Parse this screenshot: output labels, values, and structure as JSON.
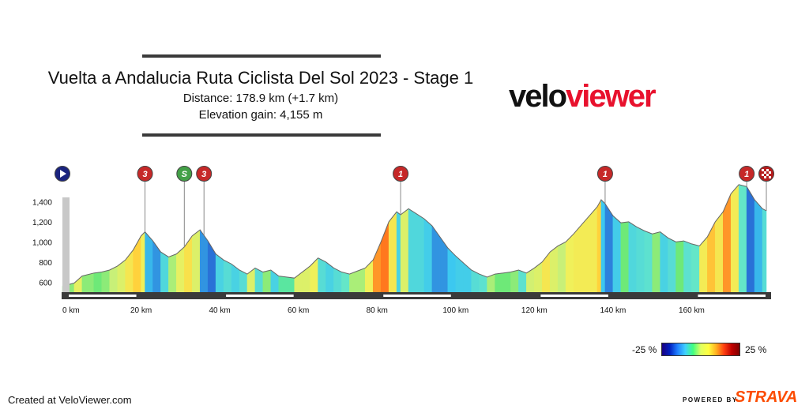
{
  "header": {
    "title": "Vuelta a Andalucia Ruta Ciclista Del Sol 2023 - Stage 1",
    "distance": "Distance: 178.9 km (+1.7 km)",
    "elevation": "Elevation gain: 4,155 m"
  },
  "logo": {
    "part1": "velo",
    "part2": "viewer"
  },
  "legend": {
    "min": "-25 %",
    "max": "25 %"
  },
  "footer": {
    "created": "Created at VeloViewer.com",
    "powered": "POWERED BY",
    "strava": "STRAVA"
  },
  "colors": {
    "brand": "#e8112d",
    "strava": "#fc4c02",
    "marker_red": "#c62828",
    "marker_green": "#43a047",
    "marker_blue": "#1a237e"
  },
  "chart_data": {
    "type": "area",
    "xlabel": "",
    "ylabel": "",
    "xlim": [
      0,
      180
    ],
    "ylim": [
      500,
      1600
    ],
    "x_ticks": [
      0,
      20,
      40,
      60,
      80,
      100,
      120,
      140,
      160
    ],
    "x_tick_labels": [
      "0 km",
      "20 km",
      "40 km",
      "60 km",
      "80 km",
      "100 km",
      "120 km",
      "140 km",
      "160 km"
    ],
    "y_ticks": [
      600,
      800,
      1000,
      1200,
      1400
    ],
    "y_tick_labels": [
      "600",
      "800",
      "1,000",
      "1,200",
      "1,400"
    ],
    "elevation_profile": [
      [
        0,
        560
      ],
      [
        3,
        590
      ],
      [
        5,
        660
      ],
      [
        8,
        690
      ],
      [
        10,
        700
      ],
      [
        12,
        720
      ],
      [
        14,
        760
      ],
      [
        16,
        820
      ],
      [
        18,
        920
      ],
      [
        20,
        1060
      ],
      [
        21,
        1100
      ],
      [
        23,
        1010
      ],
      [
        25,
        900
      ],
      [
        27,
        850
      ],
      [
        29,
        880
      ],
      [
        31,
        950
      ],
      [
        33,
        1060
      ],
      [
        35,
        1120
      ],
      [
        37,
        1010
      ],
      [
        39,
        880
      ],
      [
        41,
        820
      ],
      [
        43,
        780
      ],
      [
        45,
        720
      ],
      [
        47,
        680
      ],
      [
        49,
        740
      ],
      [
        51,
        700
      ],
      [
        53,
        720
      ],
      [
        55,
        660
      ],
      [
        57,
        650
      ],
      [
        59,
        640
      ],
      [
        61,
        700
      ],
      [
        63,
        760
      ],
      [
        65,
        840
      ],
      [
        67,
        800
      ],
      [
        69,
        740
      ],
      [
        71,
        700
      ],
      [
        73,
        680
      ],
      [
        75,
        710
      ],
      [
        77,
        740
      ],
      [
        79,
        820
      ],
      [
        81,
        1000
      ],
      [
        83,
        1200
      ],
      [
        85,
        1300
      ],
      [
        86,
        1270
      ],
      [
        88,
        1330
      ],
      [
        90,
        1280
      ],
      [
        92,
        1230
      ],
      [
        94,
        1160
      ],
      [
        96,
        1050
      ],
      [
        98,
        940
      ],
      [
        100,
        860
      ],
      [
        102,
        790
      ],
      [
        104,
        720
      ],
      [
        106,
        680
      ],
      [
        108,
        650
      ],
      [
        110,
        680
      ],
      [
        112,
        690
      ],
      [
        114,
        700
      ],
      [
        116,
        720
      ],
      [
        118,
        690
      ],
      [
        120,
        740
      ],
      [
        122,
        800
      ],
      [
        124,
        900
      ],
      [
        126,
        960
      ],
      [
        128,
        1000
      ],
      [
        130,
        1080
      ],
      [
        132,
        1170
      ],
      [
        134,
        1260
      ],
      [
        136,
        1350
      ],
      [
        137,
        1420
      ],
      [
        138,
        1380
      ],
      [
        140,
        1260
      ],
      [
        142,
        1190
      ],
      [
        144,
        1200
      ],
      [
        146,
        1150
      ],
      [
        148,
        1110
      ],
      [
        150,
        1080
      ],
      [
        152,
        1100
      ],
      [
        154,
        1040
      ],
      [
        156,
        1000
      ],
      [
        158,
        1010
      ],
      [
        160,
        980
      ],
      [
        162,
        960
      ],
      [
        164,
        1050
      ],
      [
        166,
        1200
      ],
      [
        168,
        1300
      ],
      [
        170,
        1480
      ],
      [
        172,
        1570
      ],
      [
        174,
        1550
      ],
      [
        176,
        1420
      ],
      [
        178,
        1330
      ],
      [
        179,
        1310
      ]
    ],
    "markers": [
      {
        "km": 0,
        "type": "start",
        "label": "▶"
      },
      {
        "km": 21,
        "type": "cat3",
        "label": "3"
      },
      {
        "km": 31,
        "type": "sprint",
        "label": "S"
      },
      {
        "km": 36,
        "type": "cat3",
        "label": "3"
      },
      {
        "km": 86,
        "type": "cat1",
        "label": "1"
      },
      {
        "km": 138,
        "type": "cat1",
        "label": "1"
      },
      {
        "km": 174,
        "type": "cat1",
        "label": "1"
      },
      {
        "km": 179,
        "type": "finish",
        "label": ""
      }
    ]
  }
}
